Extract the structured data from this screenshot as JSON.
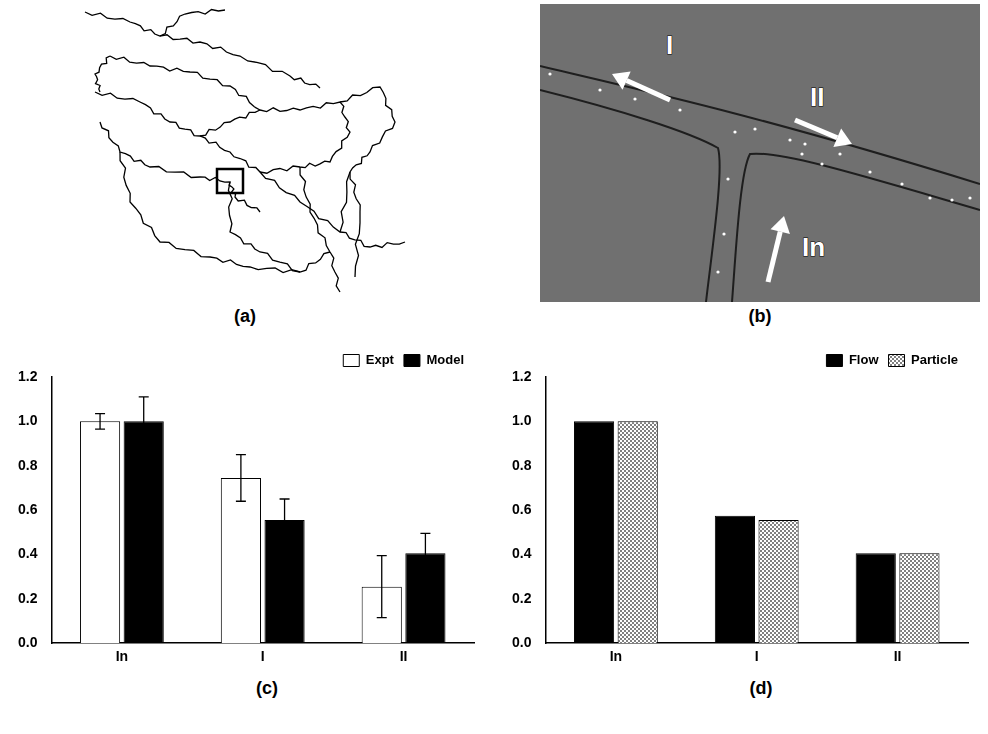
{
  "panels": [
    {
      "type": "diagram",
      "label": "(a)"
    },
    {
      "type": "image",
      "label": "(b)",
      "arrow_labels": [
        "I",
        "II",
        "In"
      ]
    }
  ],
  "chart_data": [
    {
      "type": "bar",
      "caption": "(c)",
      "categories": [
        "In",
        "I",
        "II"
      ],
      "series": [
        {
          "name": "Expt",
          "color": "#ffffff",
          "values": [
            1.0,
            0.745,
            0.255
          ],
          "errors": [
            0.035,
            0.105,
            0.14
          ]
        },
        {
          "name": "Model",
          "color": "#000000",
          "values": [
            1.0,
            0.555,
            0.405
          ],
          "errors": [
            0.11,
            0.095,
            0.09
          ]
        }
      ],
      "ylim": [
        0,
        1.2
      ],
      "yticks": [
        {
          "value": 0,
          "label": "0.0"
        },
        0.2,
        0.4,
        0.6,
        0.8,
        {
          "value": 1,
          "label": "1.0"
        },
        1.2
      ],
      "grid": false,
      "legend": "upper right"
    },
    {
      "type": "bar",
      "caption": "(d)",
      "categories": [
        "In",
        "I",
        "II"
      ],
      "series": [
        {
          "name": "Flow",
          "color": "#000000",
          "values": [
            1.0,
            0.575,
            0.405
          ]
        },
        {
          "name": "Particle",
          "color": "#808080",
          "marker": "checkered",
          "values": [
            1.0,
            0.555,
            0.405
          ]
        }
      ],
      "ylim": [
        0,
        1.2
      ],
      "yticks": [
        {
          "value": 0,
          "label": "0.0"
        },
        0.2,
        0.4,
        0.6,
        0.8,
        {
          "value": 1,
          "label": "1.0"
        },
        1.2
      ],
      "grid": false,
      "legend": "upper right"
    }
  ]
}
